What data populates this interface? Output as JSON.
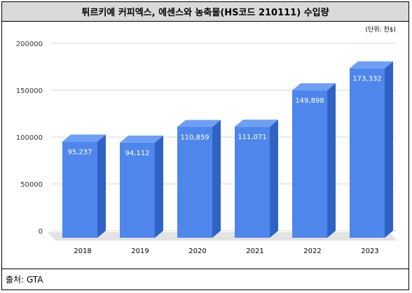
{
  "title": "튀르키예 커피엑스, 에센스와 농축물(HS코드 210111) 수입량",
  "unit_note": "(단위: 천$)",
  "source": "출처: GTA",
  "colors": {
    "bar_front": "#4f86ec",
    "bar_top": "#6f9ff3",
    "bar_side": "#2f62c4",
    "floor": "#e3e3e3",
    "grid": "#d4d4d4"
  },
  "chart_data": {
    "type": "bar",
    "categories": [
      "2018",
      "2019",
      "2020",
      "2021",
      "2022",
      "2023"
    ],
    "values": [
      95237,
      94112,
      110859,
      111071,
      149898,
      173332
    ],
    "value_labels": [
      "95,237",
      "94,112",
      "110,859",
      "111,071",
      "149,898",
      "173,332"
    ],
    "yticks": [
      "0",
      "50000",
      "100000",
      "150000",
      "200000"
    ],
    "ylim": [
      0,
      200000
    ],
    "grid": true,
    "legend": "none"
  }
}
